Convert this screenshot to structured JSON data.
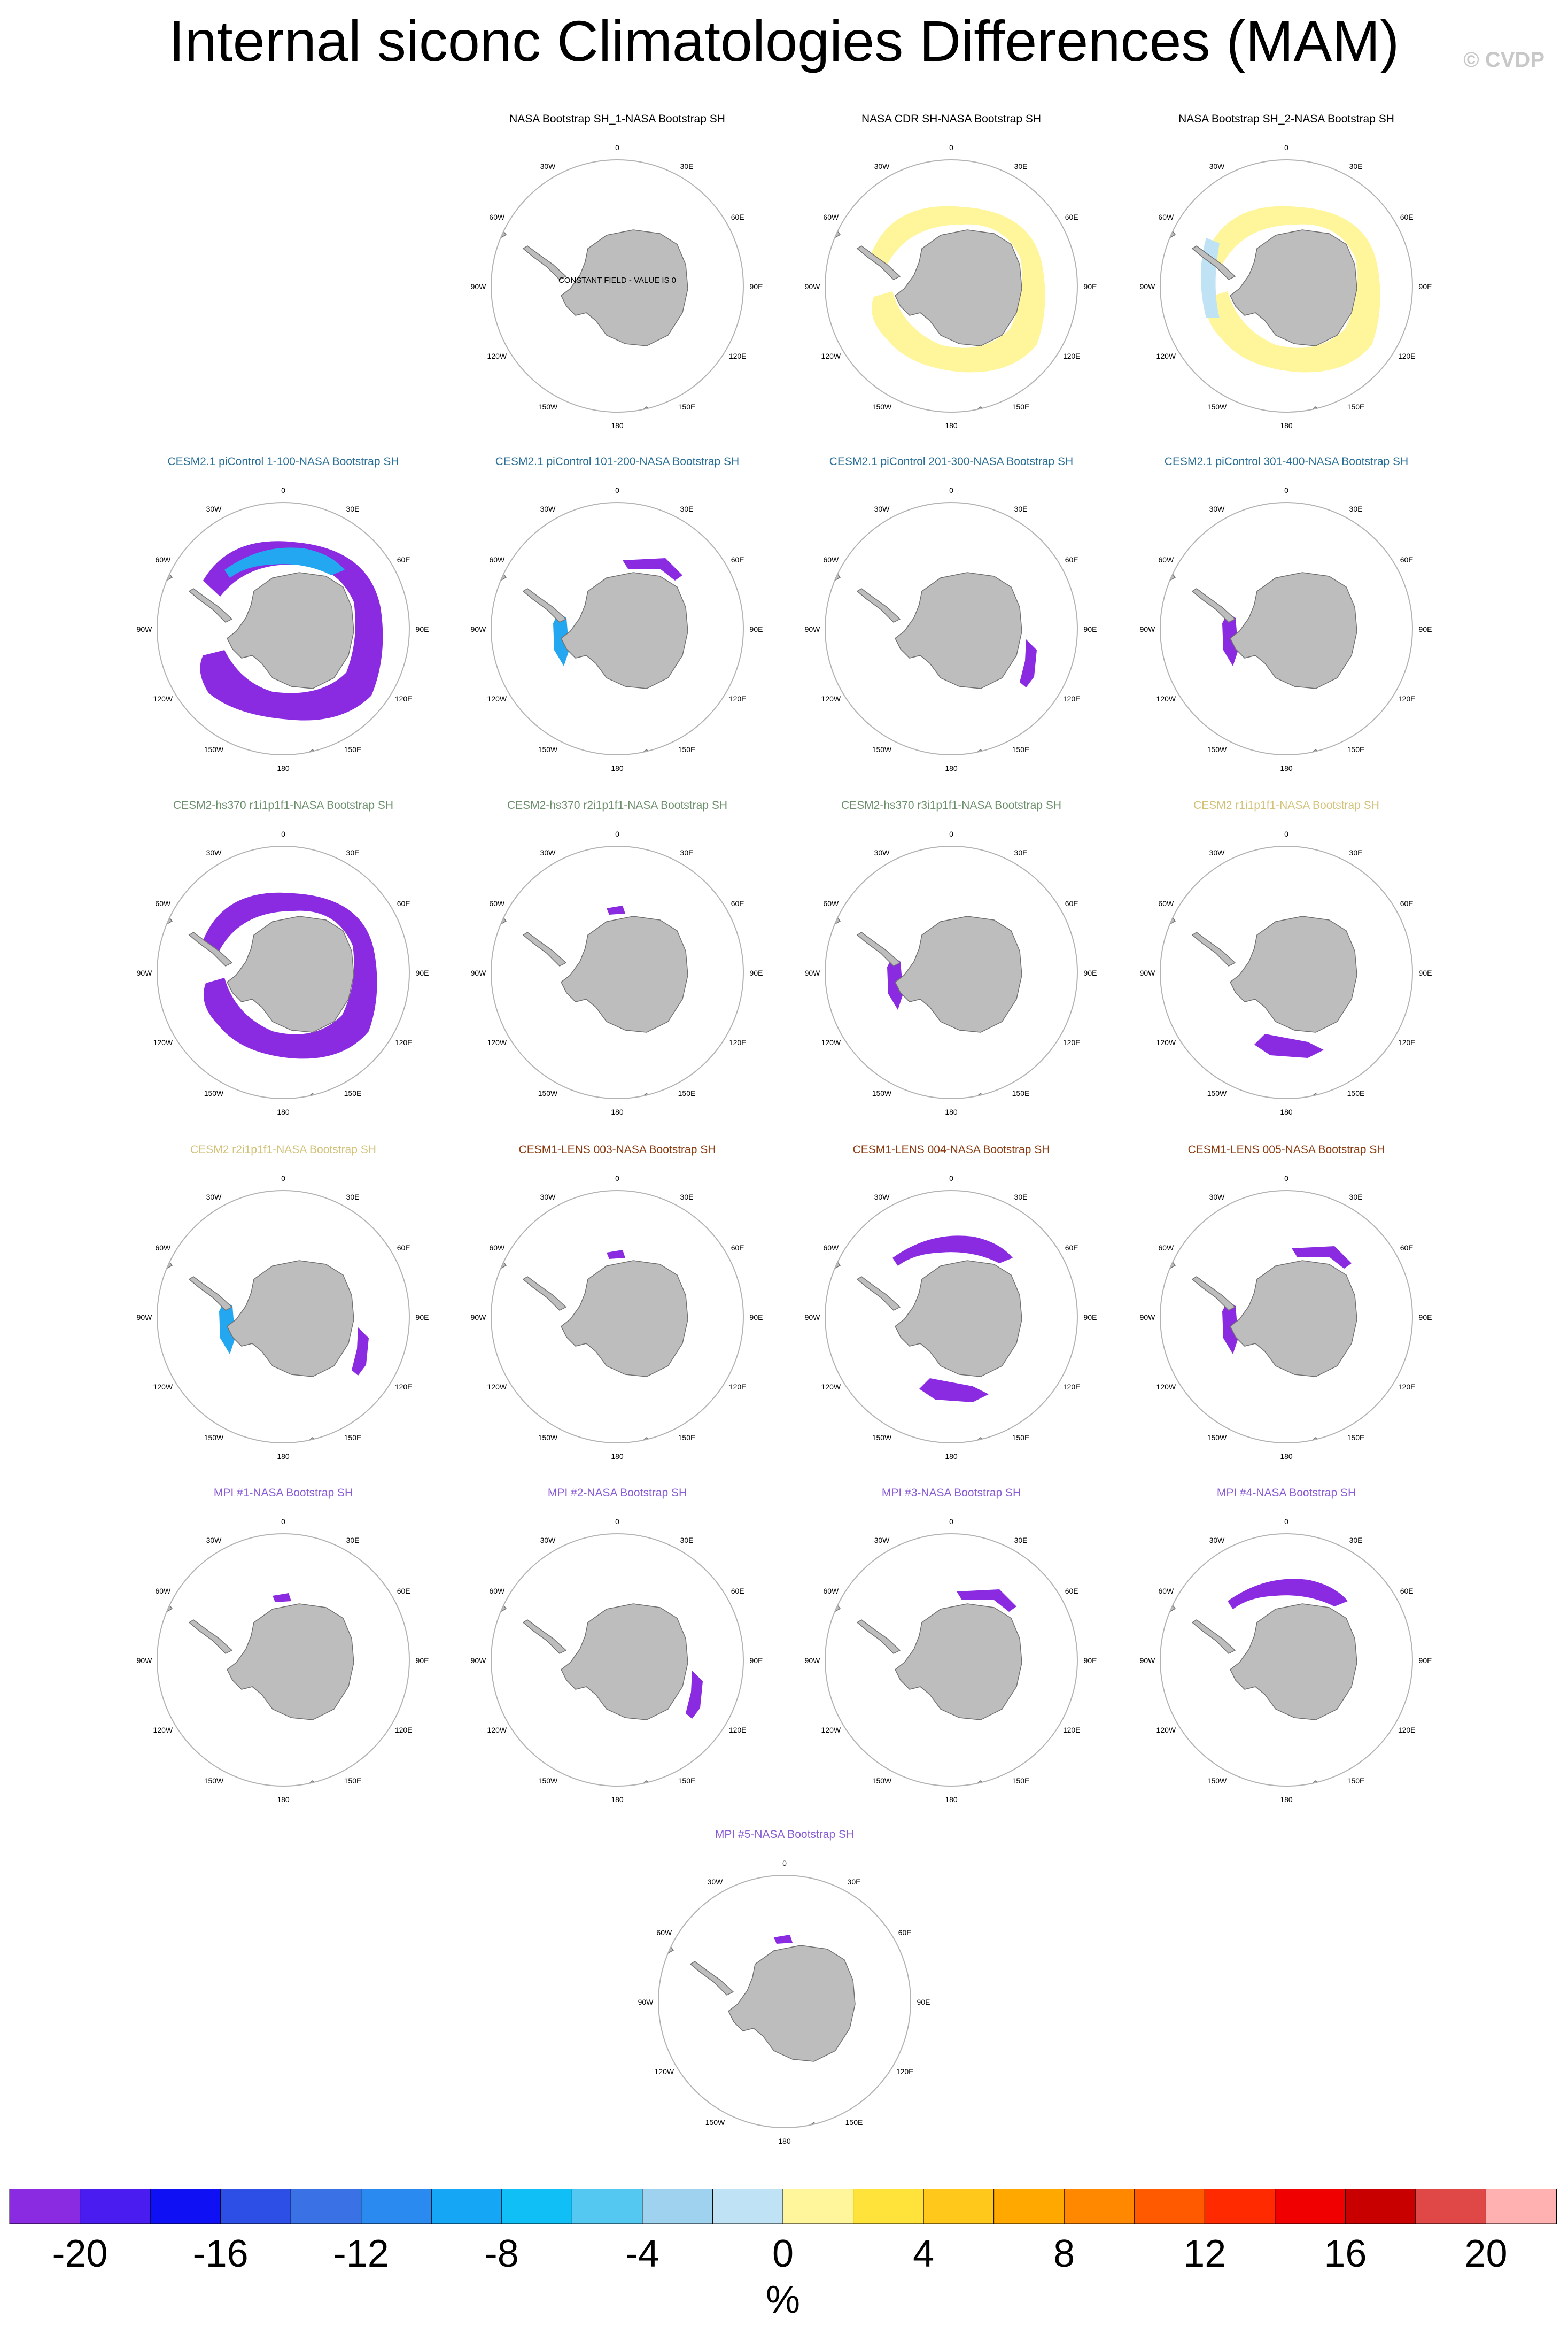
{
  "title": "Internal siconc Climatologies Differences (MAM)",
  "credit": "© CVDP",
  "lon_labels": [
    "0",
    "30E",
    "60E",
    "90E",
    "120E",
    "150E",
    "180",
    "150W",
    "120W",
    "90W",
    "60W",
    "30W"
  ],
  "constant_field_text": "CONSTANT FIELD - VALUE IS 0",
  "colors": {
    "coast": "#707070",
    "land": "#bdbdbd",
    "ring": "#b3b3b3"
  },
  "panels": [
    {
      "title": "NASA Bootstrap SH_1-NASA Bootstrap SH",
      "title_color": "#000000",
      "constant": true,
      "patches": []
    },
    {
      "title": "NASA CDR SH-NASA Bootstrap SH",
      "title_color": "#000000",
      "patches": [
        {
          "color": "#fff59a",
          "shape": "ring"
        }
      ]
    },
    {
      "title": "NASA Bootstrap SH_2-NASA Bootstrap SH",
      "title_color": "#000000",
      "patches": [
        {
          "color": "#fff59a",
          "shape": "ring"
        },
        {
          "color": "#bfe3f5",
          "shape": "west"
        }
      ]
    },
    {
      "title": "CESM2.1 piControl 1-100-NASA Bootstrap SH",
      "title_color": "#2a6f97",
      "patches": [
        {
          "color": "#8a2be2",
          "shape": "ringthick"
        },
        {
          "color": "#22a7f0",
          "shape": "north"
        }
      ]
    },
    {
      "title": "CESM2.1 piControl 101-200-NASA Bootstrap SH",
      "title_color": "#2a6f97",
      "patches": [
        {
          "color": "#8a2be2",
          "shape": "nne"
        },
        {
          "color": "#22a7f0",
          "shape": "peninsula"
        }
      ]
    },
    {
      "title": "CESM2.1 piControl 201-300-NASA Bootstrap SH",
      "title_color": "#2a6f97",
      "patches": [
        {
          "color": "#8a2be2",
          "shape": "east"
        }
      ]
    },
    {
      "title": "CESM2.1 piControl 301-400-NASA Bootstrap SH",
      "title_color": "#2a6f97",
      "patches": [
        {
          "color": "#8a2be2",
          "shape": "peninsula"
        }
      ]
    },
    {
      "title": "CESM2-hs370 r1i1p1f1-NASA Bootstrap SH",
      "title_color": "#6b8e6b",
      "patches": [
        {
          "color": "#8a2be2",
          "shape": "ring"
        }
      ]
    },
    {
      "title": "CESM2-hs370 r2i1p1f1-NASA Bootstrap SH",
      "title_color": "#6b8e6b",
      "patches": [
        {
          "color": "#8a2be2",
          "shape": "small"
        }
      ]
    },
    {
      "title": "CESM2-hs370 r3i1p1f1-NASA Bootstrap SH",
      "title_color": "#6b8e6b",
      "patches": [
        {
          "color": "#8a2be2",
          "shape": "peninsula"
        }
      ]
    },
    {
      "title": "CESM2 r1i1p1f1-NASA Bootstrap SH",
      "title_color": "#d2c27a",
      "patches": [
        {
          "color": "#8a2be2",
          "shape": "south"
        }
      ]
    },
    {
      "title": "CESM2 r2i1p1f1-NASA Bootstrap SH",
      "title_color": "#d2c27a",
      "patches": [
        {
          "color": "#8a2be2",
          "shape": "east"
        },
        {
          "color": "#22a7f0",
          "shape": "peninsula"
        }
      ]
    },
    {
      "title": "CESM1-LENS 003-NASA Bootstrap SH",
      "title_color": "#8b3a0f",
      "patches": [
        {
          "color": "#8a2be2",
          "shape": "small"
        }
      ]
    },
    {
      "title": "CESM1-LENS 004-NASA Bootstrap SH",
      "title_color": "#8b3a0f",
      "patches": [
        {
          "color": "#8a2be2",
          "shape": "north"
        },
        {
          "color": "#8a2be2",
          "shape": "south"
        }
      ]
    },
    {
      "title": "CESM1-LENS 005-NASA Bootstrap SH",
      "title_color": "#8b3a0f",
      "patches": [
        {
          "color": "#8a2be2",
          "shape": "peninsula"
        },
        {
          "color": "#8a2be2",
          "shape": "nne"
        }
      ]
    },
    {
      "title": "MPI #1-NASA Bootstrap SH",
      "title_color": "#8a5cd6",
      "patches": [
        {
          "color": "#8a2be2",
          "shape": "small"
        }
      ]
    },
    {
      "title": "MPI #2-NASA Bootstrap SH",
      "title_color": "#8a5cd6",
      "patches": [
        {
          "color": "#8a2be2",
          "shape": "east"
        }
      ]
    },
    {
      "title": "MPI #3-NASA Bootstrap SH",
      "title_color": "#8a5cd6",
      "patches": [
        {
          "color": "#8a2be2",
          "shape": "nne"
        }
      ]
    },
    {
      "title": "MPI #4-NASA Bootstrap SH",
      "title_color": "#8a5cd6",
      "patches": [
        {
          "color": "#8a2be2",
          "shape": "north"
        }
      ]
    },
    {
      "title": "MPI #5-NASA Bootstrap SH",
      "title_color": "#8a5cd6",
      "patches": [
        {
          "color": "#8a2be2",
          "shape": "small"
        }
      ]
    }
  ],
  "chart_data": {
    "type": "heatmap",
    "title": "Internal siconc Climatologies Differences (MAM)",
    "projection": "south polar stereographic",
    "colorbar": {
      "unit": "%",
      "tick_labels": [
        "-20",
        "-16",
        "-12",
        "-8",
        "-4",
        "0",
        "4",
        "8",
        "12",
        "16",
        "20"
      ],
      "levels": [
        -20,
        -18,
        -16,
        -14,
        -12,
        -10,
        -8,
        -6,
        -4,
        -2,
        0,
        2,
        4,
        6,
        8,
        10,
        12,
        14,
        16,
        18,
        20
      ],
      "colors": [
        "#8a2be2",
        "#4a1cf0",
        "#1010f5",
        "#2e4fe6",
        "#3a72e6",
        "#2a8af0",
        "#15a6f5",
        "#10bff5",
        "#55c8f2",
        "#9fd2ee",
        "#bfe3f5",
        "#fff59a",
        "#ffe23a",
        "#ffc81a",
        "#ffa800",
        "#ff8800",
        "#ff5a00",
        "#ff2a00",
        "#f00000",
        "#c80000",
        "#e04848",
        "#ffb0b0"
      ]
    }
  }
}
